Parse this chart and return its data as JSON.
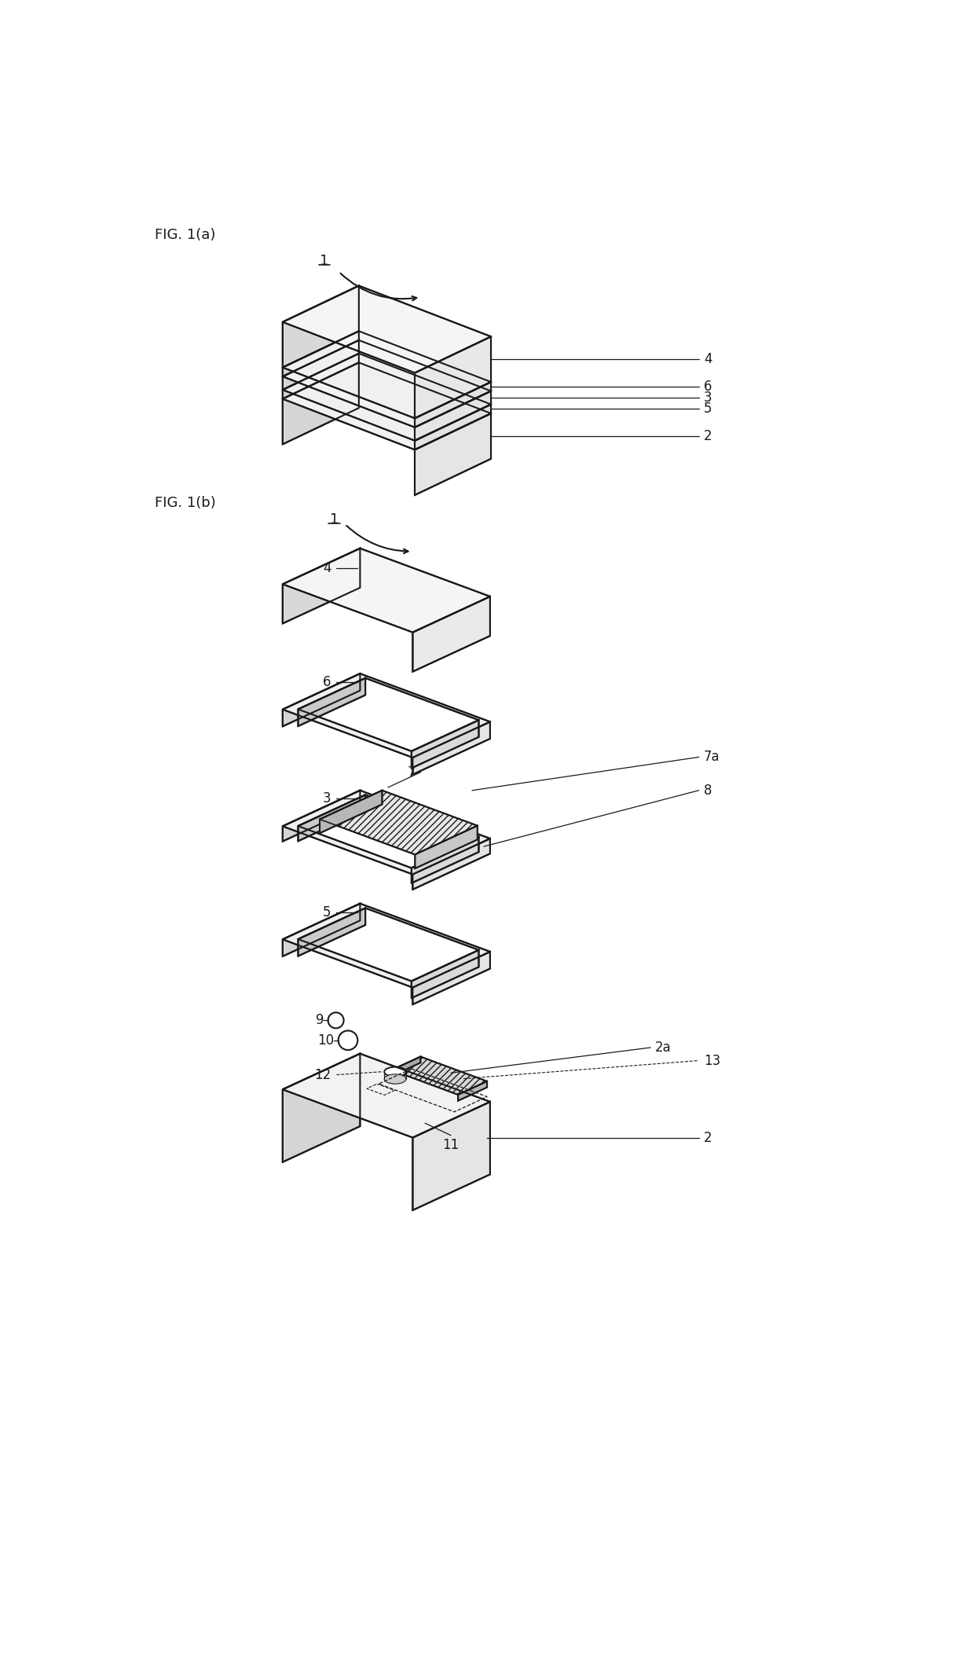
{
  "fig_title_a": "FIG. 1(a)",
  "fig_title_b": "FIG. 1(b)",
  "background_color": "#ffffff",
  "line_color": "#1a1a1a",
  "line_width": 1.5,
  "label_fontsize": 12,
  "title_fontsize": 13
}
